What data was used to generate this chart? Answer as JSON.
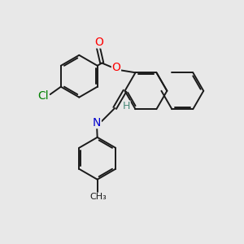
{
  "bg_color": "#e8e8e8",
  "bond_color": "#1a1a1a",
  "bond_width": 1.4,
  "atom_colors": {
    "O": "#ff0000",
    "N": "#0000cd",
    "Cl": "#008000",
    "H": "#4a8a7a",
    "C": "#1a1a1a"
  },
  "font_size": 9,
  "figsize": [
    3.0,
    3.0
  ],
  "dpi": 100
}
